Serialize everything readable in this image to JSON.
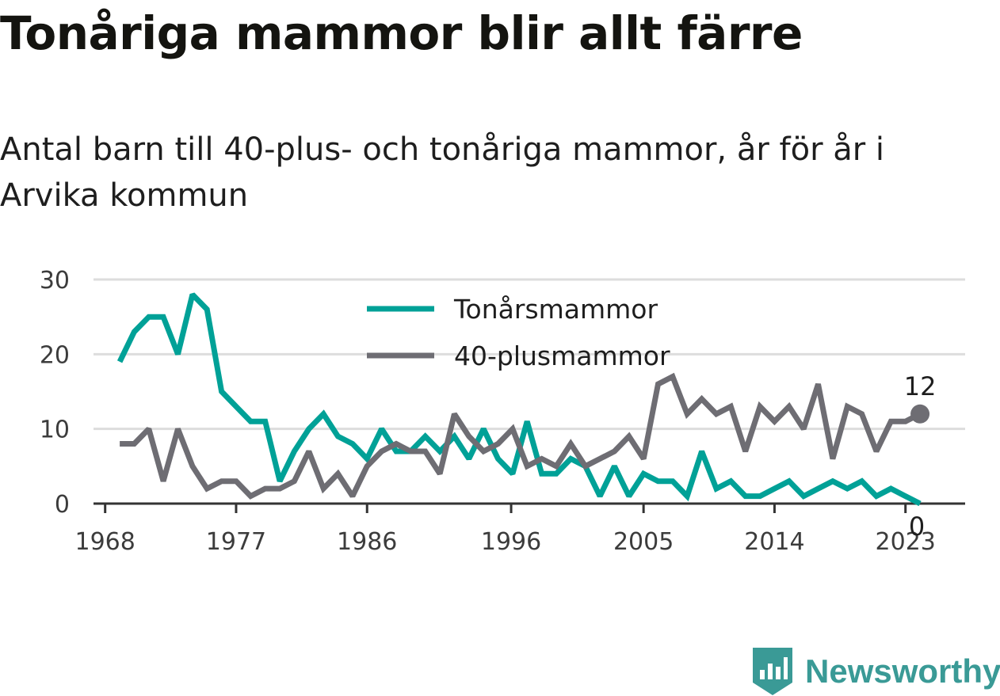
{
  "header": {
    "title": "Tonåriga mammor blir allt färre",
    "subtitle": "Antal barn till 40-plus- och tonåriga mammor, år för år i Arvika kommun"
  },
  "brand": {
    "name": "Newsworthy",
    "icon": "newsworthy-logo-icon",
    "color": "#3a9a96"
  },
  "chart_data": {
    "type": "line",
    "title": "",
    "xlabel": "",
    "ylabel": "",
    "x_ticks": [
      "1968",
      "1977",
      "1986",
      "1996",
      "2005",
      "2014",
      "2023"
    ],
    "x_tick_years": [
      1968,
      1977,
      1986,
      1995.9,
      2005,
      2014,
      2023
    ],
    "y_ticks": [
      "0",
      "10",
      "20",
      "30"
    ],
    "ylim": [
      0,
      30
    ],
    "xlim": [
      1967.2,
      2027.1
    ],
    "grid": "horizontal",
    "legend_position": "top-center",
    "x": [
      1969,
      1970,
      1971,
      1972,
      1973,
      1974,
      1975,
      1976,
      1977,
      1978,
      1979,
      1980,
      1981,
      1982,
      1983,
      1984,
      1985,
      1986,
      1987,
      1988,
      1989,
      1990,
      1991,
      1992,
      1993,
      1994,
      1995,
      1996,
      1997,
      1998,
      1999,
      2000,
      2001,
      2002,
      2003,
      2004,
      2005,
      2006,
      2007,
      2008,
      2009,
      2010,
      2011,
      2012,
      2013,
      2014,
      2015,
      2016,
      2017,
      2018,
      2019,
      2020,
      2021,
      2022,
      2023,
      2024
    ],
    "series": [
      {
        "name": "Tonårsmammor",
        "color": "#00a197",
        "values": [
          19,
          23,
          25,
          25,
          20,
          28,
          26,
          15,
          13,
          11,
          11,
          3,
          7,
          10,
          12,
          9,
          8,
          6,
          10,
          7,
          7,
          9,
          7,
          9,
          6,
          10,
          6,
          4,
          11,
          4,
          4,
          6,
          5,
          1,
          5,
          1,
          4,
          3,
          3,
          1,
          7,
          2,
          3,
          1,
          1,
          2,
          3,
          1,
          2,
          3,
          2,
          3,
          1,
          2,
          1,
          0
        ],
        "end_label": "0"
      },
      {
        "name": "40-plusmammor",
        "color": "#6e6d73",
        "values": [
          8,
          8,
          10,
          3,
          10,
          5,
          2,
          3,
          3,
          1,
          2,
          2,
          3,
          7,
          2,
          4,
          1,
          5,
          7,
          8,
          7,
          7,
          4,
          12,
          9,
          7,
          8,
          10,
          5,
          6,
          5,
          8,
          5,
          6,
          7,
          9,
          6,
          16,
          17,
          12,
          14,
          12,
          13,
          7,
          13,
          11,
          13,
          10,
          16,
          6,
          13,
          12,
          7,
          11,
          11,
          12
        ],
        "end_label": "12"
      }
    ]
  }
}
